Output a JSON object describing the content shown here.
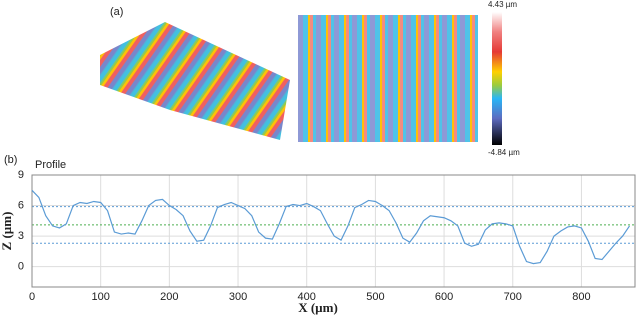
{
  "panel_a": {
    "label": "(a)",
    "colorbar_max": "4.43 µm",
    "colorbar_min": "-4.84 µm"
  },
  "chart_data": {
    "type": "line",
    "panel_label": "(b)",
    "title": "Profile",
    "x_label": "X (µm)",
    "y_label": "Z (µm)",
    "xlim": [
      0,
      878
    ],
    "ylim": [
      -2,
      9
    ],
    "xticks": [
      0,
      100,
      200,
      300,
      400,
      500,
      600,
      700,
      800
    ],
    "yticks": [
      0,
      3,
      6,
      9
    ],
    "grid": true,
    "reference_lines": [
      {
        "value": 5.9,
        "color": "#5b9bd5"
      },
      {
        "value": 4.1,
        "color": "#4caf50"
      },
      {
        "value": 2.3,
        "color": "#5b9bd5"
      }
    ],
    "x": [
      0,
      10,
      20,
      30,
      40,
      50,
      60,
      70,
      80,
      90,
      100,
      110,
      120,
      130,
      140,
      150,
      160,
      170,
      180,
      190,
      200,
      210,
      220,
      230,
      240,
      250,
      260,
      270,
      280,
      290,
      300,
      310,
      320,
      330,
      340,
      350,
      360,
      370,
      380,
      390,
      400,
      410,
      420,
      430,
      440,
      450,
      460,
      470,
      480,
      490,
      500,
      510,
      520,
      530,
      540,
      550,
      560,
      570,
      580,
      590,
      600,
      610,
      620,
      630,
      640,
      650,
      660,
      670,
      680,
      690,
      700,
      710,
      720,
      730,
      740,
      750,
      760,
      770,
      780,
      790,
      800,
      810,
      820,
      830,
      840,
      850,
      860,
      870
    ],
    "series": [
      {
        "name": "Profile",
        "color": "#5b9bd5",
        "values": [
          7.5,
          6.8,
          5.0,
          4.0,
          3.8,
          4.2,
          6.0,
          6.3,
          6.2,
          6.4,
          6.3,
          5.5,
          3.4,
          3.2,
          3.3,
          3.2,
          4.5,
          6.0,
          6.5,
          6.6,
          6.0,
          5.6,
          5.0,
          3.5,
          2.5,
          2.6,
          4.0,
          5.8,
          6.1,
          6.3,
          6.0,
          5.7,
          5.0,
          3.4,
          2.8,
          2.7,
          4.2,
          5.9,
          6.1,
          6.0,
          6.2,
          5.9,
          5.5,
          4.2,
          3.0,
          2.6,
          4.0,
          5.8,
          6.1,
          6.5,
          6.4,
          6.0,
          5.5,
          4.3,
          2.8,
          2.4,
          3.3,
          4.5,
          5.0,
          4.9,
          4.8,
          4.5,
          4.0,
          2.3,
          2.0,
          2.2,
          3.6,
          4.2,
          4.3,
          4.2,
          4.0,
          2.0,
          0.5,
          0.3,
          0.4,
          1.5,
          3.0,
          3.5,
          3.9,
          4.0,
          3.8,
          2.5,
          0.8,
          0.7,
          1.5,
          2.3,
          3.0,
          4.0
        ]
      }
    ]
  }
}
